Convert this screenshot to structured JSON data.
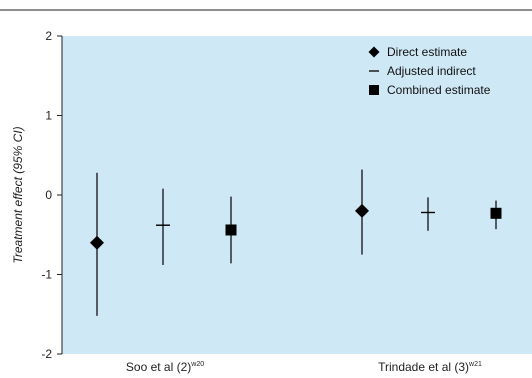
{
  "chart_data": {
    "type": "scatter",
    "title": "",
    "ylabel": "Treatment effect (95% CI)",
    "xlabel": "",
    "ylim": [
      -2,
      2
    ],
    "yticks": [
      2,
      1,
      0,
      -1,
      -2
    ],
    "yticklabels": [
      "2",
      "1",
      "0",
      "-1",
      "-2"
    ],
    "grid": false,
    "legend_position": "top-right",
    "background_color": "#cfe8f6",
    "marker_color": "#000000",
    "categories": [
      {
        "label": "Soo et al (2)",
        "superscript": "w20"
      },
      {
        "label": "Trindade et al (3)",
        "superscript": "w21"
      }
    ],
    "series": [
      {
        "name": "Direct estimate",
        "marker": "diamond",
        "values": [
          -0.6,
          -0.2
        ],
        "lower": [
          -1.52,
          -0.75
        ],
        "upper": [
          0.28,
          0.32
        ]
      },
      {
        "name": "Adjusted indirect",
        "marker": "dash",
        "values": [
          -0.38,
          -0.22
        ],
        "lower": [
          -0.88,
          -0.45
        ],
        "upper": [
          0.08,
          -0.03
        ]
      },
      {
        "name": "Combined estimate",
        "marker": "square",
        "values": [
          -0.44,
          -0.23
        ],
        "lower": [
          -0.86,
          -0.43
        ],
        "upper": [
          -0.02,
          -0.07
        ]
      }
    ]
  }
}
